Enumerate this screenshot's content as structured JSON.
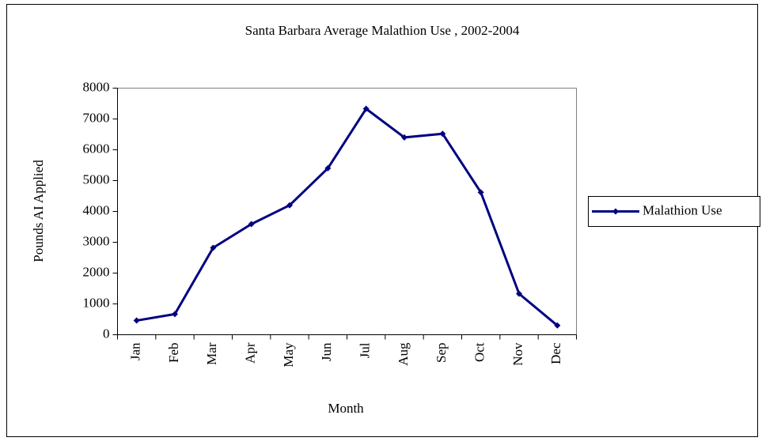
{
  "chart_data": {
    "type": "line",
    "title": "Santa Barbara Average Malathion Use , 2002-2004",
    "x_label": "Month",
    "y_label": "Pounds AI Applied",
    "categories": [
      "Jan",
      "Feb",
      "Mar",
      "Apr",
      "May",
      "Jun",
      "Jul",
      "Aug",
      "Sep",
      "Oct",
      "Nov",
      "Dec"
    ],
    "series": [
      {
        "name": "Malathion Use",
        "color": "#000080",
        "values": [
          460,
          670,
          2820,
          3590,
          4200,
          5400,
          7330,
          6400,
          6520,
          4620,
          1330,
          300
        ]
      }
    ],
    "ylim": [
      0,
      8000
    ],
    "yticks": [
      0,
      1000,
      2000,
      3000,
      4000,
      5000,
      6000,
      7000,
      8000
    ],
    "grid": false,
    "legend": "right"
  }
}
